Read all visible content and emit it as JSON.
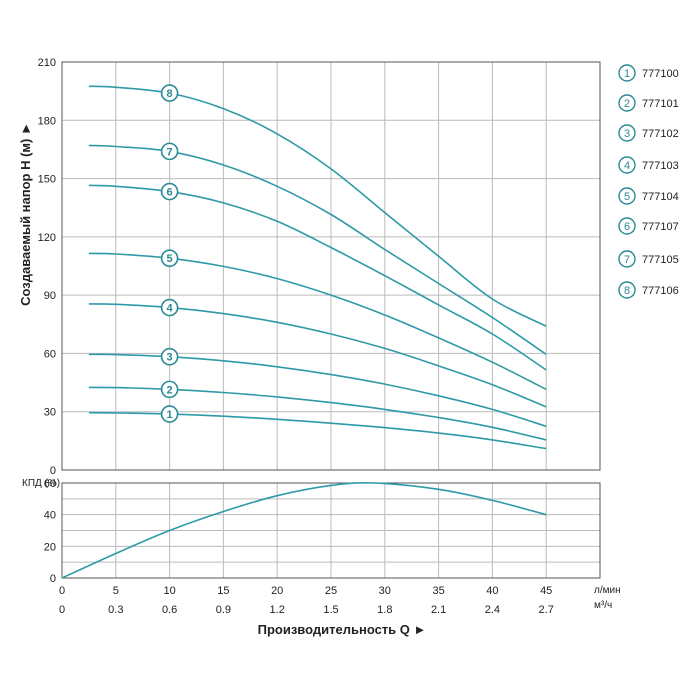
{
  "colors": {
    "curve": "#2e9aa8",
    "frame": "#555555",
    "grid": "#bbbbbb",
    "marker": "#2a8a96"
  },
  "chart_data": [
    {
      "type": "line",
      "ylabel": "Создаваемый напор Н (м) ►",
      "ylim": [
        0,
        210
      ],
      "yticks": [
        0,
        30,
        60,
        90,
        120,
        150,
        180,
        210
      ],
      "xlim": [
        0,
        50
      ],
      "xticks": [
        0,
        5,
        10,
        15,
        20,
        25,
        30,
        35,
        40,
        45
      ],
      "grid": true,
      "legend_position": "right",
      "x": [
        2.5,
        5,
        10,
        15,
        20,
        25,
        30,
        35,
        40,
        45
      ],
      "series": [
        {
          "name": "777100",
          "marker": "1",
          "values": [
            29.5,
            29.4,
            28.8,
            27.7,
            26.1,
            24.1,
            21.8,
            19.0,
            15.5,
            11.0
          ]
        },
        {
          "name": "777101",
          "marker": "2",
          "values": [
            42.5,
            42.4,
            41.5,
            39.9,
            37.6,
            34.7,
            31.2,
            27.0,
            22.0,
            15.5
          ]
        },
        {
          "name": "777102",
          "marker": "3",
          "values": [
            59.5,
            59.4,
            58.3,
            56.2,
            53.1,
            49.1,
            44.2,
            38.2,
            31.2,
            22.5
          ]
        },
        {
          "name": "777103",
          "marker": "4",
          "values": [
            85.5,
            85.3,
            83.6,
            80.5,
            76.0,
            70.0,
            62.6,
            53.6,
            43.9,
            32.5
          ]
        },
        {
          "name": "777104",
          "marker": "5",
          "values": [
            111.5,
            111.2,
            109.0,
            104.8,
            98.5,
            90.0,
            79.8,
            68.0,
            55.5,
            41.5
          ]
        },
        {
          "name": "777107",
          "marker": "6",
          "values": [
            146.5,
            146.0,
            143.3,
            137.5,
            128.0,
            114.5,
            100.0,
            85.0,
            70.0,
            51.5
          ]
        },
        {
          "name": "777105",
          "marker": "7",
          "values": [
            167.0,
            166.5,
            164.0,
            157.0,
            146.0,
            131.5,
            113.5,
            96.0,
            78.5,
            59.5
          ]
        },
        {
          "name": "777106",
          "marker": "8",
          "values": [
            197.5,
            197.0,
            194.0,
            186.0,
            173.0,
            155.0,
            132.5,
            110.0,
            88.0,
            74.0
          ]
        }
      ],
      "marker_x": 10
    },
    {
      "type": "line",
      "ylabel": "КПД (%)",
      "ylim": [
        0,
        60
      ],
      "yticks": [
        0,
        20,
        40,
        60
      ],
      "xlim": [
        0,
        50
      ],
      "grid": true,
      "x": [
        0,
        5,
        10,
        15,
        20,
        25,
        29,
        35,
        40,
        45
      ],
      "series": [
        {
          "values": [
            0,
            15.5,
            30,
            42,
            52,
            58.5,
            60,
            56,
            49,
            40
          ]
        }
      ]
    }
  ],
  "x_axis": {
    "unit_primary": "л/мин",
    "unit_secondary": "м³/ч",
    "primary_ticks": [
      "0",
      "5",
      "10",
      "15",
      "20",
      "25",
      "30",
      "35",
      "40",
      "45"
    ],
    "secondary_ticks": [
      "0",
      "0.3",
      "0.6",
      "0.9",
      "1.2",
      "1.5",
      "1.8",
      "2.1",
      "2.4",
      "2.7"
    ],
    "xlabel": "Производительность Q ►"
  }
}
